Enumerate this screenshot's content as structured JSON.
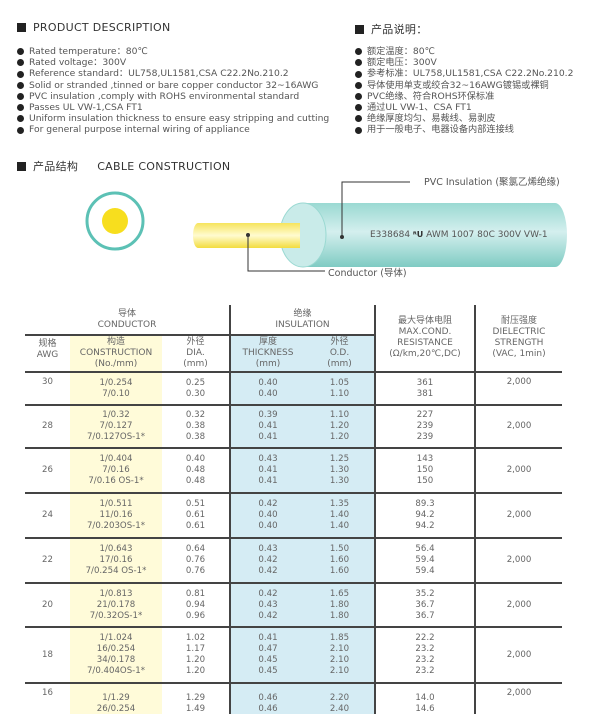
{
  "description_en": {
    "title": "PRODUCT DESCRIPTION",
    "items": [
      "Rated temperature：80℃",
      "Rated voltage：300V",
      "Reference standard：UL758,UL1581,CSA C22.2No.210.2",
      "Solid or stranded ,tinned or bare copper conductor 32~16AWG",
      "PVC insulation ,comply with ROHS environmental standard",
      "Passes UL VW-1,CSA FT1",
      "Uniform insulation thickness to ensure easy stripping and cutting",
      "For general purpose internal wiring of appliance"
    ]
  },
  "description_cn": {
    "title": "产品说明：",
    "items": [
      "额定温度：80℃",
      "额定电压：300V",
      "参考标准：UL758,UL1581,CSA C22.2No.210.2",
      "导体使用单支或绞合32~16AWG镀锡或裸铜",
      "PVC绝缘、符合ROHS环保标准",
      "通过UL VW-1、CSA FT1",
      "绝缘厚度均匀、易裁线、易剥皮",
      "用于一般电子、电器设备内部连接线"
    ]
  },
  "construction": {
    "title_cn": "产品结构",
    "title_en": "CABLE CONSTRUCTION",
    "insulation_label": "PVC Insulation (聚氯乙烯绝缘)",
    "conductor_label": "Conductor (导体)",
    "cable_marking_left": "E338684",
    "cable_marking_ul": "UL",
    "cable_marking_right": "AWM 1007 80C 300V VW-1",
    "colors": {
      "insulation": "#8fd3cc",
      "conductor": "#f7e04a"
    }
  },
  "table": {
    "group_conductor": [
      "导体",
      "CONDUCTOR"
    ],
    "group_insulation": [
      "绝缘",
      "INSULATION"
    ],
    "headers": {
      "awg": [
        "规格",
        "AWG"
      ],
      "construction": [
        "构造",
        "CONSTRUCTION",
        "(No./mm)"
      ],
      "dia": [
        "外径",
        "DIA.",
        "(mm)"
      ],
      "thickness": [
        "厚度",
        "THICKNESS",
        "(mm)"
      ],
      "od": [
        "外径",
        "O.D.",
        "(mm)"
      ],
      "resistance": [
        "最大导体电阻",
        "MAX.COND.",
        "RESISTANCE",
        "(Ω/km,20℃,DC)"
      ],
      "dielectric": [
        "耐压强度",
        "DIELECTRIC",
        "STRENGTH",
        "(VAC, 1min)"
      ]
    },
    "rows": [
      {
        "awg": "30",
        "construction": [
          "1/0.254",
          "7/0.10"
        ],
        "dia": [
          "0.25",
          "0.30"
        ],
        "thickness": [
          "0.40",
          "0.40"
        ],
        "od": [
          "1.05",
          "1.10"
        ],
        "resistance": [
          "361",
          "381"
        ],
        "dielectric": "2,000"
      },
      {
        "awg": "28",
        "construction": [
          "1/0.32",
          "7/0.127",
          "7/0.127OS-1*"
        ],
        "dia": [
          "0.32",
          "0.38",
          "0.38"
        ],
        "thickness": [
          "0.39",
          "0.41",
          "0.41"
        ],
        "od": [
          "1.10",
          "1.20",
          "1.20"
        ],
        "resistance": [
          "227",
          "239",
          "239"
        ],
        "dielectric": "2,000"
      },
      {
        "awg": "26",
        "construction": [
          "1/0.404",
          "7/0.16",
          "7/0.16 OS-1*"
        ],
        "dia": [
          "0.40",
          "0.48",
          "0.48"
        ],
        "thickness": [
          "0.43",
          "0.41",
          "0.41"
        ],
        "od": [
          "1.25",
          "1.30",
          "1.30"
        ],
        "resistance": [
          "143",
          "150",
          "150"
        ],
        "dielectric": "2,000"
      },
      {
        "awg": "24",
        "construction": [
          "1/0.511",
          "11/0.16",
          "7/0.203OS-1*"
        ],
        "dia": [
          "0.51",
          "0.61",
          "0.61"
        ],
        "thickness": [
          "0.42",
          "0.40",
          "0.40"
        ],
        "od": [
          "1.35",
          "1.40",
          "1.40"
        ],
        "resistance": [
          "89.3",
          "94.2",
          "94.2"
        ],
        "dielectric": "2,000"
      },
      {
        "awg": "22",
        "construction": [
          "1/0.643",
          "17/0.16",
          "7/0.254 OS-1*"
        ],
        "dia": [
          "0.64",
          "0.76",
          "0.76"
        ],
        "thickness": [
          "0.43",
          "0.42",
          "0.42"
        ],
        "od": [
          "1.50",
          "1.60",
          "1.60"
        ],
        "resistance": [
          "56.4",
          "59.4",
          "59.4"
        ],
        "dielectric": "2,000"
      },
      {
        "awg": "20",
        "construction": [
          "1/0.813",
          "21/0.178",
          "7/0.32OS-1*"
        ],
        "dia": [
          "0.81",
          "0.94",
          "0.96"
        ],
        "thickness": [
          "0.42",
          "0.43",
          "0.42"
        ],
        "od": [
          "1.65",
          "1.80",
          "1.80"
        ],
        "resistance": [
          "35.2",
          "36.7",
          "36.7"
        ],
        "dielectric": "2,000"
      },
      {
        "awg": "18",
        "construction": [
          "1/1.024",
          "16/0.254",
          "34/0.178",
          "7/0.404OS-1*"
        ],
        "dia": [
          "1.02",
          "1.17",
          "1.20",
          "1.20"
        ],
        "thickness": [
          "0.41",
          "0.47",
          "0.45",
          "0.45"
        ],
        "od": [
          "1.85",
          "2.10",
          "2.10",
          "2.10"
        ],
        "resistance": [
          "22.2",
          "23.2",
          "23.2",
          "23.2"
        ],
        "dielectric": "2,000"
      },
      {
        "awg": "16",
        "construction": [
          "1/1.29",
          "26/0.254"
        ],
        "dia": [
          "1.29",
          "1.49"
        ],
        "thickness": [
          "0.46",
          "0.46"
        ],
        "od": [
          "2.20",
          "2.40"
        ],
        "resistance": [
          "14.0",
          "14.6"
        ],
        "dielectric": "2,000"
      }
    ]
  }
}
